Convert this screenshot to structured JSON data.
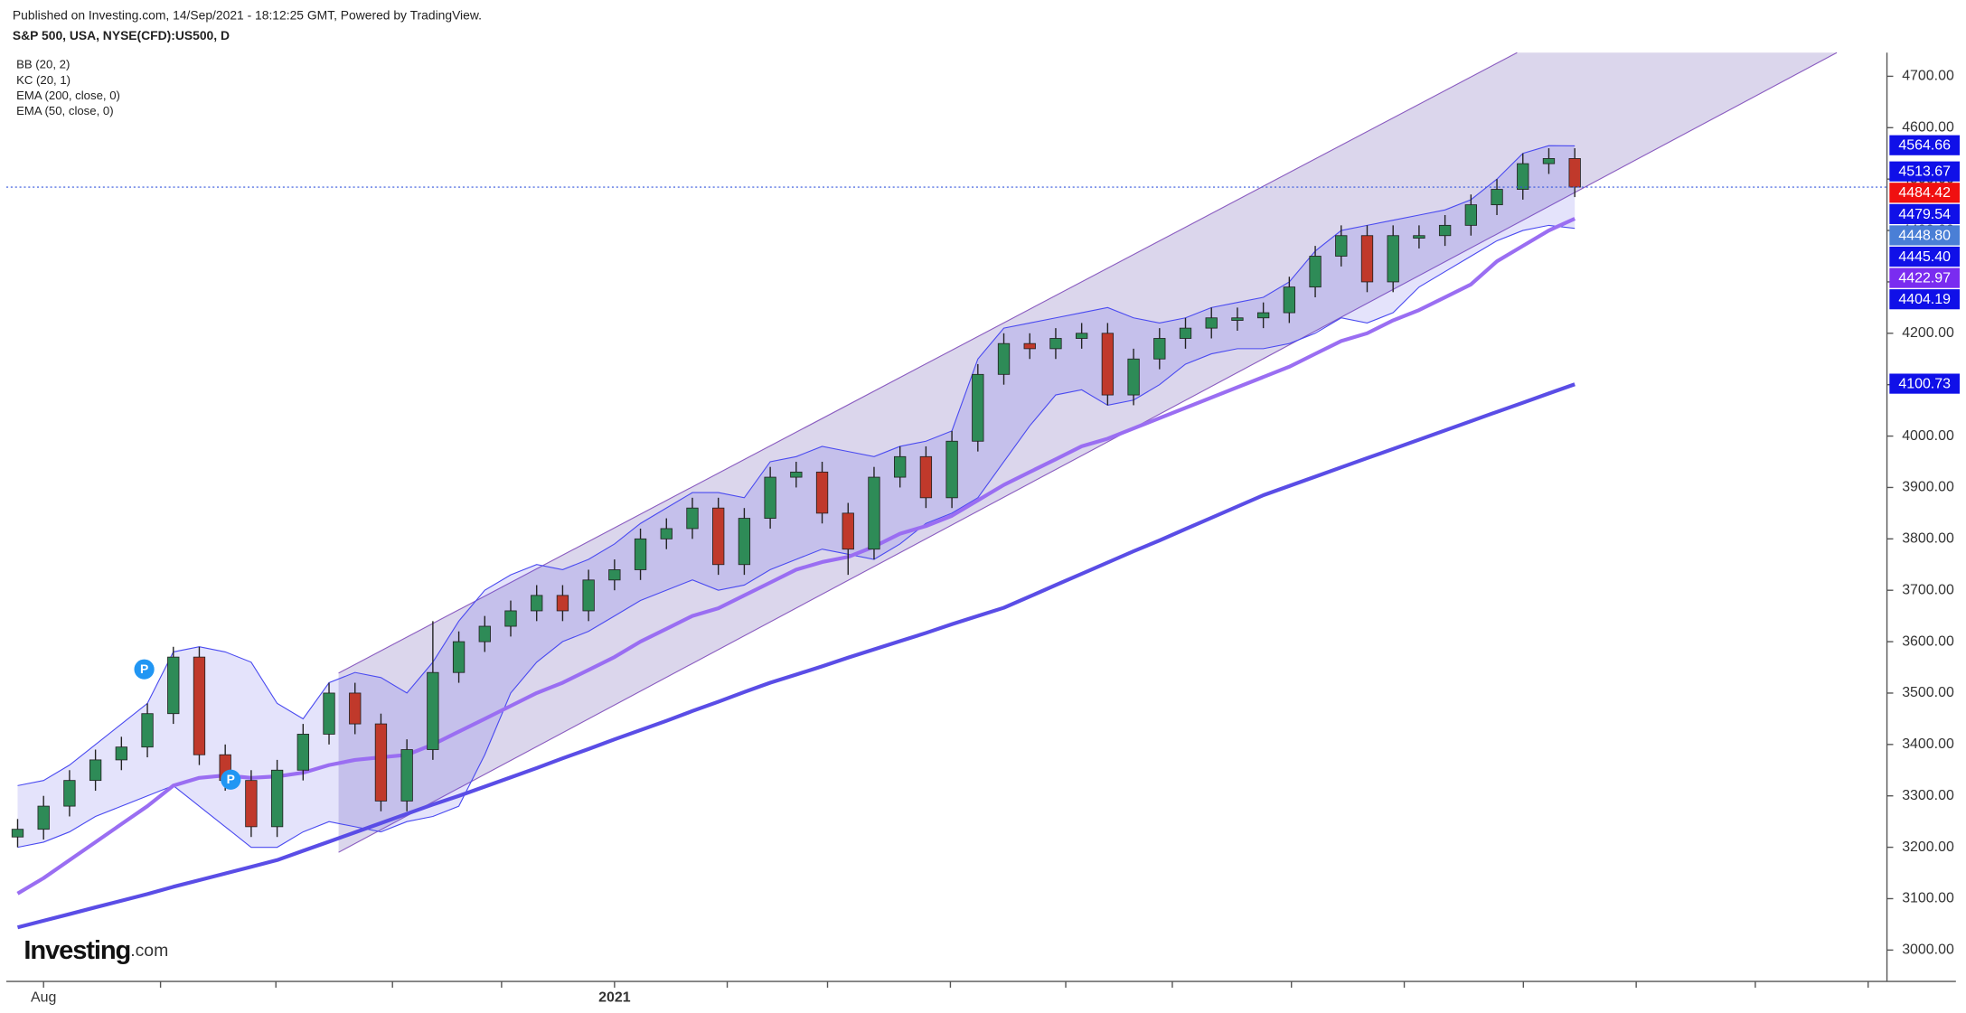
{
  "chart_data": {
    "type": "candlestick",
    "subtitle": "Published on Investing.com, 14/Sep/2021 - 18:12:25 GMT, Powered by TradingView.",
    "title": "S&P 500, USA, NYSE(CFD):US500, D",
    "categories": [
      null,
      "Aug",
      null,
      null,
      null,
      null,
      null,
      null,
      null,
      null,
      null,
      null,
      null,
      null,
      null,
      null,
      null,
      null,
      null,
      null,
      null,
      null,
      null,
      "2021",
      null,
      null,
      null,
      null,
      null,
      null,
      null,
      null,
      null,
      null,
      null,
      null,
      null,
      null,
      null,
      null,
      null,
      null,
      null,
      null,
      null,
      null,
      null,
      null,
      null,
      null,
      null,
      null,
      null,
      null,
      null,
      null,
      null,
      null,
      null,
      null,
      null
    ],
    "open": [
      3220,
      3235,
      3280,
      3330,
      3370,
      3395,
      3460,
      3570,
      3380,
      3330,
      3240,
      3350,
      3420,
      3500,
      3440,
      3290,
      3390,
      3540,
      3600,
      3630,
      3660,
      3690,
      3660,
      3720,
      3740,
      3800,
      3820,
      3860,
      3750,
      3840,
      3920,
      3930,
      3850,
      3780,
      3920,
      3960,
      3880,
      3990,
      4120,
      4180,
      4170,
      4190,
      4200,
      4080,
      4150,
      4190,
      4210,
      4225,
      4230,
      4240,
      4290,
      4350,
      4390,
      4300,
      4385,
      4390,
      4410,
      4450,
      4480,
      4530,
      4540
    ],
    "high": [
      3255,
      3300,
      3350,
      3390,
      3415,
      3480,
      3590,
      3590,
      3400,
      3350,
      3370,
      3440,
      3520,
      3520,
      3460,
      3410,
      3640,
      3620,
      3650,
      3680,
      3710,
      3710,
      3740,
      3760,
      3820,
      3840,
      3880,
      3880,
      3860,
      3940,
      3950,
      3950,
      3870,
      3940,
      3980,
      3980,
      4010,
      4140,
      4200,
      4200,
      4210,
      4220,
      4220,
      4170,
      4210,
      4230,
      4250,
      4250,
      4260,
      4310,
      4370,
      4410,
      4410,
      4410,
      4410,
      4430,
      4470,
      4500,
      4550,
      4560,
      4560
    ],
    "low": [
      3200,
      3215,
      3260,
      3310,
      3350,
      3375,
      3440,
      3360,
      3310,
      3220,
      3220,
      3330,
      3400,
      3420,
      3270,
      3270,
      3370,
      3520,
      3580,
      3610,
      3640,
      3640,
      3640,
      3700,
      3720,
      3780,
      3800,
      3730,
      3730,
      3820,
      3900,
      3830,
      3730,
      3760,
      3900,
      3860,
      3860,
      3970,
      4100,
      4150,
      4150,
      4170,
      4060,
      4060,
      4130,
      4170,
      4190,
      4205,
      4210,
      4220,
      4270,
      4330,
      4280,
      4280,
      4365,
      4370,
      4390,
      4430,
      4460,
      4510,
      4465
    ],
    "close": [
      3235,
      3280,
      3330,
      3370,
      3395,
      3460,
      3570,
      3380,
      3330,
      3240,
      3350,
      3420,
      3500,
      3440,
      3290,
      3390,
      3540,
      3600,
      3630,
      3660,
      3690,
      3660,
      3720,
      3740,
      3800,
      3820,
      3860,
      3750,
      3840,
      3920,
      3930,
      3850,
      3780,
      3920,
      3960,
      3880,
      3990,
      4120,
      4180,
      4170,
      4190,
      4200,
      4080,
      4150,
      4190,
      4210,
      4230,
      4230,
      4240,
      4290,
      4350,
      4390,
      4300,
      4390,
      4390,
      4410,
      4450,
      4480,
      4530,
      4540,
      4484.42
    ],
    "up_color": "#2e8b57",
    "down_color": "#c0392b",
    "indicators": [
      {
        "name": "BB (20, 2)",
        "color": "#4a4af0",
        "upper": [
          3320,
          3330,
          3360,
          3400,
          3440,
          3480,
          3580,
          3590,
          3580,
          3560,
          3480,
          3450,
          3520,
          3540,
          3530,
          3500,
          3560,
          3640,
          3700,
          3730,
          3750,
          3740,
          3760,
          3790,
          3830,
          3860,
          3890,
          3890,
          3880,
          3950,
          3960,
          3980,
          3970,
          3960,
          3980,
          3990,
          4010,
          4150,
          4210,
          4220,
          4230,
          4240,
          4250,
          4230,
          4220,
          4230,
          4250,
          4260,
          4270,
          4300,
          4360,
          4400,
          4410,
          4420,
          4430,
          4440,
          4460,
          4500,
          4550,
          4565,
          4564.66
        ],
        "lower": [
          3200,
          3210,
          3230,
          3260,
          3280,
          3300,
          3320,
          3280,
          3240,
          3200,
          3200,
          3230,
          3250,
          3240,
          3230,
          3250,
          3260,
          3280,
          3380,
          3500,
          3560,
          3600,
          3620,
          3650,
          3680,
          3700,
          3720,
          3700,
          3710,
          3740,
          3760,
          3780,
          3770,
          3760,
          3790,
          3830,
          3850,
          3880,
          3950,
          4020,
          4080,
          4090,
          4060,
          4070,
          4100,
          4140,
          4160,
          4170,
          4170,
          4180,
          4200,
          4230,
          4220,
          4240,
          4290,
          4320,
          4350,
          4380,
          4400,
          4410,
          4404.19
        ]
      },
      {
        "name": "KC (20, 1)"
      },
      {
        "name": "EMA (200, close, 0)",
        "color": "#5a4de6",
        "values": [
          3044,
          3057,
          3070,
          3083,
          3096,
          3109,
          3123,
          3136,
          3149,
          3162,
          3175,
          3193,
          3211,
          3229,
          3247,
          3265,
          3283,
          3300,
          3318,
          3336,
          3354,
          3373,
          3391,
          3410,
          3428,
          3446,
          3465,
          3483,
          3502,
          3520,
          3536,
          3552,
          3569,
          3585,
          3601,
          3617,
          3634,
          3650,
          3666,
          3688,
          3710,
          3732,
          3754,
          3776,
          3797,
          3819,
          3841,
          3863,
          3885,
          3903,
          3921,
          3939,
          3957,
          3975,
          3993,
          4011,
          4029,
          4047,
          4065,
          4083,
          4100.73
        ]
      },
      {
        "name": "EMA (50, close, 0)",
        "color": "#9a6ef2",
        "values": [
          3110,
          3140,
          3175,
          3210,
          3245,
          3280,
          3320,
          3335,
          3340,
          3335,
          3338,
          3345,
          3360,
          3370,
          3375,
          3380,
          3400,
          3425,
          3450,
          3475,
          3500,
          3520,
          3545,
          3570,
          3600,
          3625,
          3650,
          3665,
          3690,
          3715,
          3740,
          3755,
          3765,
          3785,
          3810,
          3825,
          3845,
          3875,
          3905,
          3930,
          3955,
          3980,
          3995,
          4015,
          4035,
          4055,
          4075,
          4095,
          4115,
          4135,
          4160,
          4185,
          4200,
          4225,
          4245,
          4270,
          4295,
          4340,
          4370,
          4400,
          4422.97
        ]
      }
    ],
    "ylim": [
      2939,
      4746
    ],
    "yticks": [
      {
        "value": 3000,
        "label": "3000.00"
      },
      {
        "value": 3100,
        "label": "3100.00"
      },
      {
        "value": 3200,
        "label": "3200.00"
      },
      {
        "value": 3300,
        "label": "3300.00"
      },
      {
        "value": 3400,
        "label": "3400.00"
      },
      {
        "value": 3500,
        "label": "3500.00"
      },
      {
        "value": 3600,
        "label": "3600.00"
      },
      {
        "value": 3700,
        "label": "3700.00"
      },
      {
        "value": 3800,
        "label": "3800.00"
      },
      {
        "value": 3900,
        "label": "3900.00"
      },
      {
        "value": 4000,
        "label": "4000.00"
      },
      {
        "value": 4100,
        "label": "4100.00"
      },
      {
        "value": 4200,
        "label": "4200.00"
      },
      {
        "value": 4300,
        "label": "4300.00"
      },
      {
        "value": 4400,
        "label": "4400.00"
      },
      {
        "value": 4500,
        "label": "4500.00"
      },
      {
        "value": 4600,
        "label": "4600.00"
      },
      {
        "value": 4700,
        "label": "4700.00"
      }
    ],
    "price_labels": [
      {
        "value": 4564.66,
        "label": "4564.66",
        "color": "#1010e8"
      },
      {
        "value": 4513.67,
        "label": "4513.67",
        "color": "#1010e8"
      },
      {
        "value": 4484.42,
        "label": "4484.42",
        "color": "#f01010"
      },
      {
        "value": 4479.54,
        "label": "4479.54",
        "color": "#1010e8"
      },
      {
        "value": 4448.8,
        "label": "4448.80",
        "color": "#4a7fd6"
      },
      {
        "value": 4445.4,
        "label": "4445.40",
        "color": "#1010e8"
      },
      {
        "value": 4422.97,
        "label": "4422.97",
        "color": "#7a2cf0"
      },
      {
        "value": 4404.19,
        "label": "4404.19",
        "color": "#1010e8"
      },
      {
        "value": 4100.73,
        "label": "4100.73",
        "color": "#1010e8"
      }
    ],
    "annotations": [
      "P",
      "P"
    ],
    "logo": {
      "main": "Investing",
      "suffix": ".com"
    }
  }
}
